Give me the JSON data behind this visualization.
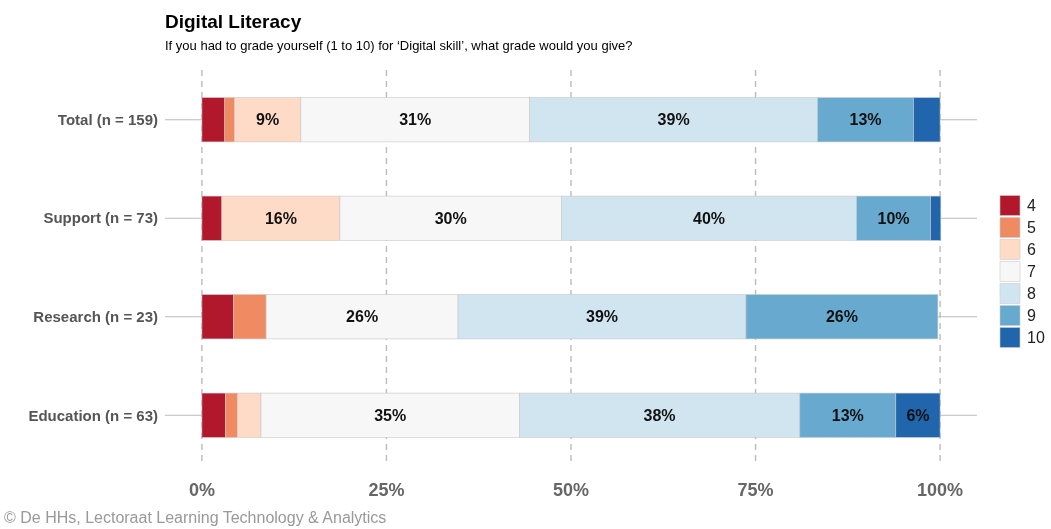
{
  "chart_data": {
    "type": "bar",
    "orientation": "horizontal",
    "stacked": true,
    "title": "Digital Literacy",
    "subtitle": "If you had to grade yourself (1 to 10) for ‘Digital skill’, what grade would you give?",
    "categories": [
      "Total (n = 159)",
      "Support (n = 73)",
      "Research (n = 23)",
      "Education (n = 63)"
    ],
    "series": [
      {
        "name": "4",
        "color": "#b2182b",
        "values": [
          3.1,
          2.7,
          4.3,
          3.2
        ],
        "value_labels": [
          null,
          null,
          null,
          null
        ]
      },
      {
        "name": "5",
        "color": "#ef8a62",
        "values": [
          1.3,
          0,
          4.4,
          1.6
        ],
        "value_labels": [
          null,
          null,
          null,
          null
        ]
      },
      {
        "name": "6",
        "color": "#fddbc7",
        "values": [
          9,
          16,
          0,
          3.2
        ],
        "value_labels": [
          "9%",
          "16%",
          null,
          null
        ]
      },
      {
        "name": "7",
        "color": "#f7f7f7",
        "values": [
          31,
          30,
          26,
          35
        ],
        "value_labels": [
          "31%",
          "30%",
          "26%",
          "35%"
        ]
      },
      {
        "name": "8",
        "color": "#d1e5f0",
        "values": [
          39,
          40,
          39,
          38
        ],
        "value_labels": [
          "39%",
          "40%",
          "39%",
          "38%"
        ]
      },
      {
        "name": "9",
        "color": "#67a9cf",
        "values": [
          13,
          10,
          26,
          13
        ],
        "value_labels": [
          "13%",
          "10%",
          "26%",
          "13%"
        ]
      },
      {
        "name": "10",
        "color": "#2166ac",
        "values": [
          3.6,
          1.4,
          0,
          6
        ],
        "value_labels": [
          null,
          null,
          null,
          "6%"
        ]
      }
    ],
    "xlim": [
      -5,
      105
    ],
    "xticks": [
      {
        "value": 0,
        "label": "0%"
      },
      {
        "value": 25,
        "label": "25%"
      },
      {
        "value": 50,
        "label": "50%"
      },
      {
        "value": 75,
        "label": "75%"
      },
      {
        "value": 100,
        "label": "100%"
      }
    ],
    "grid": true,
    "legend": "right",
    "annotations": [
      "© De HHs, Lectoraat Learning Technology & Analytics"
    ]
  }
}
